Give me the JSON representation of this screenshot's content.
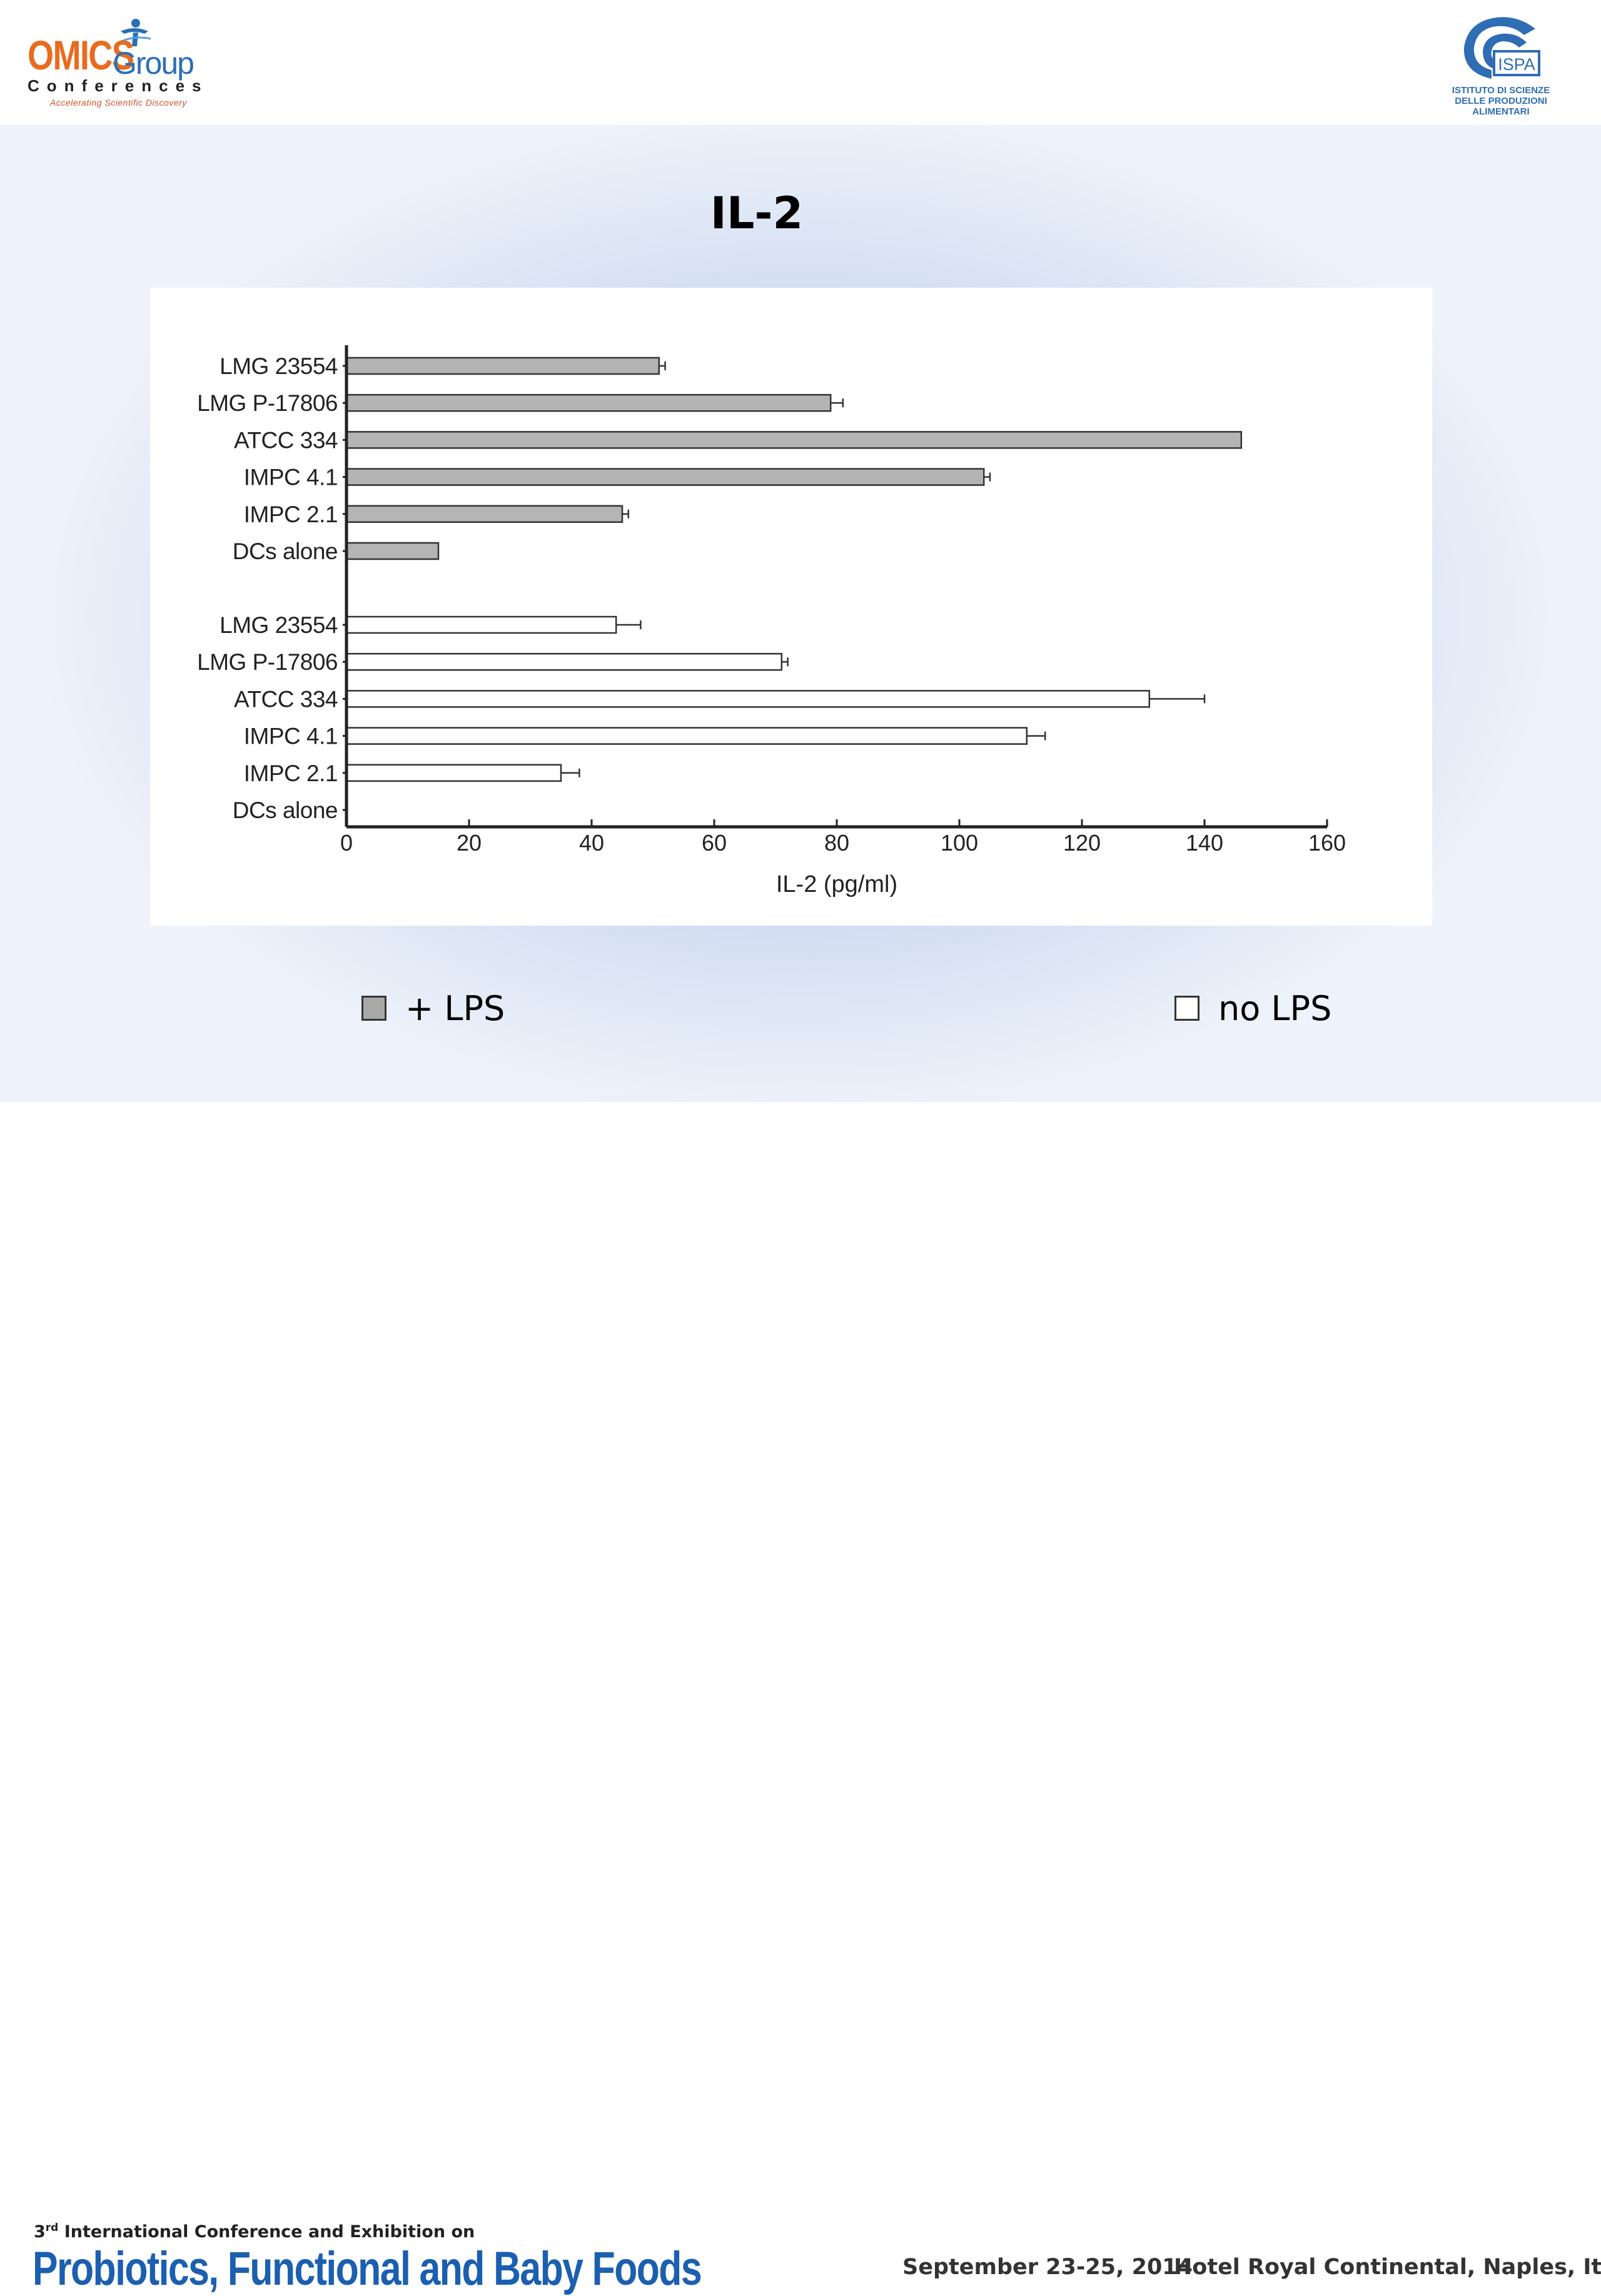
{
  "header": {
    "omics_logo": {
      "word": "OMICS",
      "group": "Group",
      "conferences": "Conferences",
      "tagline": "Accelerating Scientific Discovery"
    },
    "ispa_logo": {
      "acronym": "ISPA",
      "lines": [
        "ISTITUTO DI SCIENZE",
        "DELLE PRODUZIONI",
        "ALIMENTARI"
      ]
    }
  },
  "slide_title": "IL-2",
  "colors": {
    "lps_bar": "#b4b4b4",
    "no_lps_bar": "#ffffff",
    "axis": "#222222",
    "accent_blue": "#1b5fb0",
    "accent_orange": "#ea6b1e"
  },
  "chart_data": {
    "type": "bar",
    "orientation": "horizontal",
    "title": "",
    "xlabel": "IL-2 (pg/ml)",
    "ylabel": "",
    "xlim": [
      0,
      160
    ],
    "xticks": [
      0,
      20,
      40,
      60,
      80,
      100,
      120,
      140,
      160
    ],
    "grid": false,
    "legend_position": "below",
    "series": [
      {
        "name": "+ LPS",
        "color": "#b4b4b4",
        "categories": [
          "LMG 23554",
          "LMG P-17806",
          "ATCC 334",
          "IMPC 4.1",
          "IMPC 2.1",
          "DCs alone"
        ],
        "values": [
          51,
          79,
          146,
          104,
          45,
          15
        ],
        "errors": [
          1,
          2,
          0,
          1,
          1,
          0
        ]
      },
      {
        "name": "no LPS",
        "color": "#ffffff",
        "categories": [
          "LMG 23554",
          "LMG P-17806",
          "ATCC 334",
          "IMPC 4.1",
          "IMPC 2.1",
          "DCs alone"
        ],
        "values": [
          44,
          71,
          131,
          111,
          35,
          0
        ],
        "errors": [
          4,
          1,
          9,
          3,
          3,
          0
        ]
      }
    ]
  },
  "legend": [
    {
      "label": "+ LPS",
      "color": "#b4b4b4"
    },
    {
      "label": "no LPS",
      "color": "#ffffff"
    }
  ],
  "footer": {
    "edition_num": "3",
    "edition_sup": "rd",
    "line1_rest": " International Conference and Exhibition on",
    "line2": "Probiotics, Functional and Baby Foods",
    "date": "September 23-25, 2014",
    "venue": "Hotel Royal Continental, Naples, Italy"
  }
}
